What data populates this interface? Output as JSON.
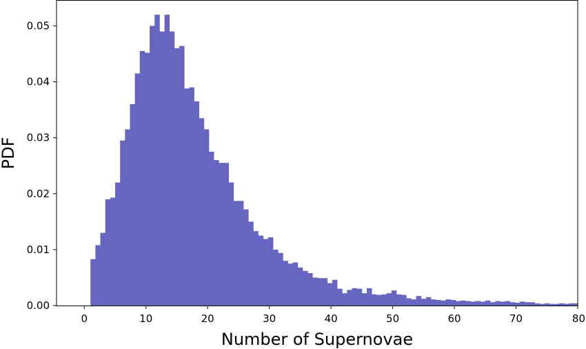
{
  "chart_data": {
    "type": "bar",
    "title": "",
    "xlabel": "Number of Supernovae",
    "ylabel": "PDF",
    "xlim": [
      -4.5,
      80
    ],
    "ylim": [
      0,
      0.0545
    ],
    "xticks": [
      0,
      10,
      20,
      30,
      40,
      50,
      60,
      70,
      80
    ],
    "yticks": [
      0.0,
      0.01,
      0.02,
      0.03,
      0.04,
      0.05
    ],
    "xtick_labels": [
      "0",
      "10",
      "20",
      "30",
      "40",
      "50",
      "60",
      "70",
      "80"
    ],
    "ytick_labels": [
      "0.00",
      "0.01",
      "0.02",
      "0.03",
      "0.04",
      "0.05"
    ],
    "grid": false,
    "bin_start": 1.0,
    "bin_width": 0.8,
    "bar_color": "#6666c0",
    "values": [
      0.0083,
      0.0108,
      0.013,
      0.019,
      0.0193,
      0.022,
      0.0295,
      0.0315,
      0.036,
      0.0415,
      0.0455,
      0.0452,
      0.05,
      0.052,
      0.049,
      0.052,
      0.049,
      0.046,
      0.0464,
      0.0388,
      0.039,
      0.0365,
      0.0335,
      0.0315,
      0.0275,
      0.026,
      0.0255,
      0.0255,
      0.022,
      0.0187,
      0.0187,
      0.0172,
      0.015,
      0.0133,
      0.0125,
      0.0119,
      0.0122,
      0.01,
      0.0094,
      0.008,
      0.0075,
      0.0077,
      0.0068,
      0.0062,
      0.0058,
      0.005,
      0.0049,
      0.0049,
      0.004,
      0.0046,
      0.003,
      0.0022,
      0.0028,
      0.0031,
      0.003,
      0.0022,
      0.0031,
      0.002,
      0.0019,
      0.002,
      0.0022,
      0.0027,
      0.002,
      0.0019,
      0.0013,
      0.0011,
      0.0017,
      0.0012,
      0.0015,
      0.0011,
      0.001,
      0.0009,
      0.0011,
      0.001,
      0.0008,
      0.0009,
      0.0008,
      0.0007,
      0.0008,
      0.0007,
      0.0009,
      0.0006,
      0.0008,
      0.0007,
      0.0008,
      0.0006,
      0.0005,
      0.0007,
      0.0006,
      0.0006,
      0.0004,
      0.0003,
      0.0004,
      0.0003,
      0.0003,
      0.0004,
      0.0003,
      0.0004,
      0.0004
    ]
  }
}
